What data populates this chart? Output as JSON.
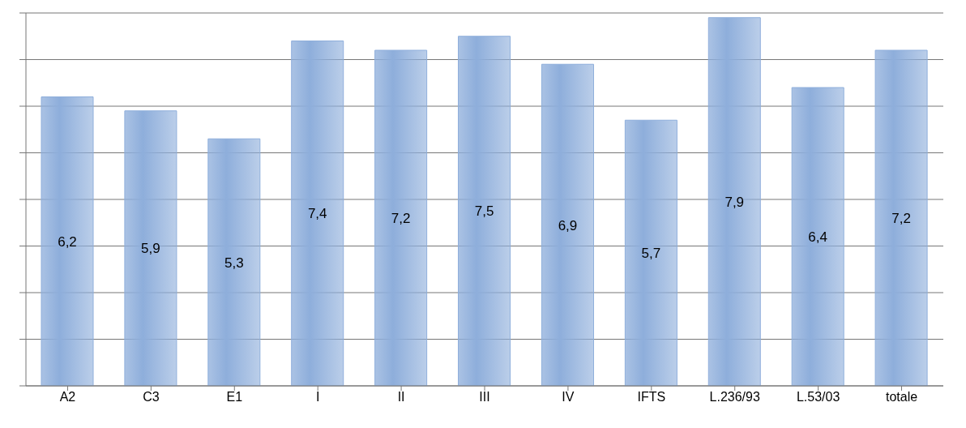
{
  "chart_data": {
    "type": "bar",
    "categories": [
      "A2",
      "C3",
      "E1",
      "I",
      "II",
      "III",
      "IV",
      "IFTS",
      "L.236/93",
      "L.53/03",
      "totale"
    ],
    "values": [
      6.2,
      5.9,
      5.3,
      7.4,
      7.2,
      7.5,
      6.9,
      5.7,
      7.9,
      6.4,
      7.2
    ],
    "value_labels": [
      "6,2",
      "5,9",
      "5,3",
      "7,4",
      "7,2",
      "7,5",
      "6,9",
      "5,7",
      "7,9",
      "6,4",
      "7,2"
    ],
    "color": "#8eaedb",
    "ylim": [
      0,
      8
    ],
    "yticks": [
      {
        "value": 0,
        "label": null
      },
      {
        "value": 1,
        "label": null
      },
      {
        "value": 2,
        "label": null
      },
      {
        "value": 3,
        "label": null
      },
      {
        "value": 4,
        "label": null
      },
      {
        "value": 5,
        "label": null
      },
      {
        "value": 6,
        "label": null
      },
      {
        "value": 7,
        "label": null
      },
      {
        "value": 8,
        "label": null
      }
    ],
    "grid": "y",
    "tick_labels": "x"
  }
}
